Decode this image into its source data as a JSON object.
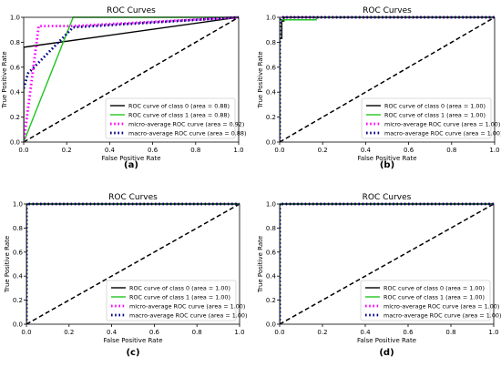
{
  "chart_data": [
    {
      "type": "line",
      "panel_label": "(a)",
      "title": "ROC Curves",
      "xlabel": "False Positive Rate",
      "ylabel": "True Positive Rate",
      "xlim": [
        0,
        1.0
      ],
      "ylim": [
        0,
        1.0
      ],
      "xticks": [
        "0.0",
        "0.2",
        "0.4",
        "0.6",
        "0.8",
        "1.0"
      ],
      "yticks": [
        "0.0",
        "0.2",
        "0.4",
        "0.6",
        "0.8",
        "1.0"
      ],
      "grid": false,
      "legend_position": "lower-right",
      "series": [
        {
          "name": "ROC curve of class 0 (area = 0.88)",
          "color": "#000000",
          "style": "solid",
          "x": [
            0,
            0,
            1.0
          ],
          "y": [
            0,
            0.76,
            1.0
          ]
        },
        {
          "name": "ROC curve of class 1 (area = 0.88)",
          "color": "#22c422",
          "style": "solid",
          "x": [
            0,
            0.23,
            1.0
          ],
          "y": [
            0,
            1.0,
            1.0
          ]
        },
        {
          "name": "micro-average ROC curve (area = 0.92)",
          "color": "#ff00ff",
          "style": "dotted",
          "x": [
            0,
            0.07,
            0.23,
            1.0
          ],
          "y": [
            0,
            0.93,
            0.93,
            1.0
          ]
        },
        {
          "name": "macro-average ROC curve (area = 0.88)",
          "color": "#00008b",
          "style": "dotted",
          "x": [
            0,
            0.02,
            0.23,
            1.0
          ],
          "y": [
            0.43,
            0.55,
            0.92,
            1.0
          ]
        }
      ],
      "diagonal": {
        "color": "#000000",
        "style": "dashed",
        "x": [
          0,
          1.0
        ],
        "y": [
          0,
          1.0
        ]
      }
    },
    {
      "type": "line",
      "panel_label": "(b)",
      "title": "ROC Curves",
      "xlabel": "False Positive Rate",
      "ylabel": "True Positive Rate",
      "xlim": [
        0,
        1.0
      ],
      "ylim": [
        0,
        1.0
      ],
      "xticks": [
        "0.0",
        "0.2",
        "0.4",
        "0.6",
        "0.8",
        "1.0"
      ],
      "yticks": [
        "0.0",
        "0.2",
        "0.4",
        "0.6",
        "0.8",
        "1.0"
      ],
      "grid": false,
      "legend_position": "lower-right",
      "series": [
        {
          "name": "ROC curve of class 0 (area = 1.00)",
          "color": "#000000",
          "style": "solid",
          "x": [
            0,
            0,
            0.01,
            0.01,
            0.02,
            0.02,
            1.0
          ],
          "y": [
            0,
            0.83,
            0.83,
            0.97,
            0.97,
            1.0,
            1.0
          ]
        },
        {
          "name": "ROC curve of class 1 (area = 1.00)",
          "color": "#22c422",
          "style": "solid",
          "x": [
            0,
            0,
            0.02,
            0.02,
            0.17,
            0.17,
            1.0
          ],
          "y": [
            0,
            0.98,
            0.98,
            0.98,
            0.98,
            1.0,
            1.0
          ]
        },
        {
          "name": "micro-average ROC curve (area = 1.00)",
          "color": "#ff00ff",
          "style": "dotted",
          "x": [
            0,
            0,
            0.01,
            1.0
          ],
          "y": [
            0,
            0.99,
            1.0,
            1.0
          ]
        },
        {
          "name": "macro-average ROC curve (area = 1.00)",
          "color": "#00008b",
          "style": "dotted",
          "x": [
            0,
            0,
            0.01,
            1.0
          ],
          "y": [
            0,
            0.98,
            1.0,
            1.0
          ]
        }
      ],
      "diagonal": {
        "color": "#000000",
        "style": "dashed",
        "x": [
          0,
          1.0
        ],
        "y": [
          0,
          1.0
        ]
      }
    },
    {
      "type": "line",
      "panel_label": "(c)",
      "title": "ROC Curves",
      "xlabel": "False Positive Rate",
      "ylabel": "True Positive Rate",
      "xlim": [
        0,
        1.0
      ],
      "ylim": [
        0,
        1.0
      ],
      "xticks": [
        "0.0",
        "0.2",
        "0.4",
        "0.6",
        "0.8",
        "1.0"
      ],
      "yticks": [
        "0.0",
        "0.2",
        "0.4",
        "0.6",
        "0.8",
        "1.0"
      ],
      "grid": false,
      "legend_position": "lower-right",
      "series": [
        {
          "name": "ROC curve of class 0 (area = 1.00)",
          "color": "#000000",
          "style": "solid",
          "x": [
            0,
            0,
            1.0
          ],
          "y": [
            0,
            1.0,
            1.0
          ]
        },
        {
          "name": "ROC curve of class 1 (area = 1.00)",
          "color": "#22c422",
          "style": "solid",
          "x": [
            0,
            0,
            1.0
          ],
          "y": [
            0,
            1.0,
            1.0
          ]
        },
        {
          "name": "micro-average ROC curve (area = 1.00)",
          "color": "#ff00ff",
          "style": "dotted",
          "x": [
            0,
            0,
            1.0
          ],
          "y": [
            0,
            1.0,
            1.0
          ]
        },
        {
          "name": "macro-average ROC curve (area = 1.00)",
          "color": "#00008b",
          "style": "dotted",
          "x": [
            0,
            0,
            1.0
          ],
          "y": [
            0,
            1.0,
            1.0
          ]
        }
      ],
      "diagonal": {
        "color": "#000000",
        "style": "dashed",
        "x": [
          0,
          1.0
        ],
        "y": [
          0,
          1.0
        ]
      }
    },
    {
      "type": "line",
      "panel_label": "(d)",
      "title": "ROC Curves",
      "xlabel": "False Positive Rate",
      "ylabel": "True Positive Rate",
      "xlim": [
        0,
        1.0
      ],
      "ylim": [
        0,
        1.0
      ],
      "xticks": [
        "0.0",
        "0.2",
        "0.4",
        "0.6",
        "0.8",
        "1.0"
      ],
      "yticks": [
        "0.0",
        "0.2",
        "0.4",
        "0.6",
        "0.8",
        "1.0"
      ],
      "grid": false,
      "legend_position": "lower-right",
      "series": [
        {
          "name": "ROC curve of class 0 (area = 1.00)",
          "color": "#000000",
          "style": "solid",
          "x": [
            0,
            0,
            1.0
          ],
          "y": [
            0,
            1.0,
            1.0
          ]
        },
        {
          "name": "ROC curve of class 1 (area = 1.00)",
          "color": "#22c422",
          "style": "solid",
          "x": [
            0,
            0,
            1.0
          ],
          "y": [
            0,
            1.0,
            1.0
          ]
        },
        {
          "name": "micro-average ROC curve (area = 1.00)",
          "color": "#ff00ff",
          "style": "dotted",
          "x": [
            0,
            0,
            1.0
          ],
          "y": [
            0,
            1.0,
            1.0
          ]
        },
        {
          "name": "macro-average ROC curve (area = 1.00)",
          "color": "#00008b",
          "style": "dotted",
          "x": [
            0,
            0,
            1.0
          ],
          "y": [
            0,
            1.0,
            1.0
          ]
        }
      ],
      "diagonal": {
        "color": "#000000",
        "style": "dashed",
        "x": [
          0,
          1.0
        ],
        "y": [
          0,
          1.0
        ]
      }
    }
  ]
}
